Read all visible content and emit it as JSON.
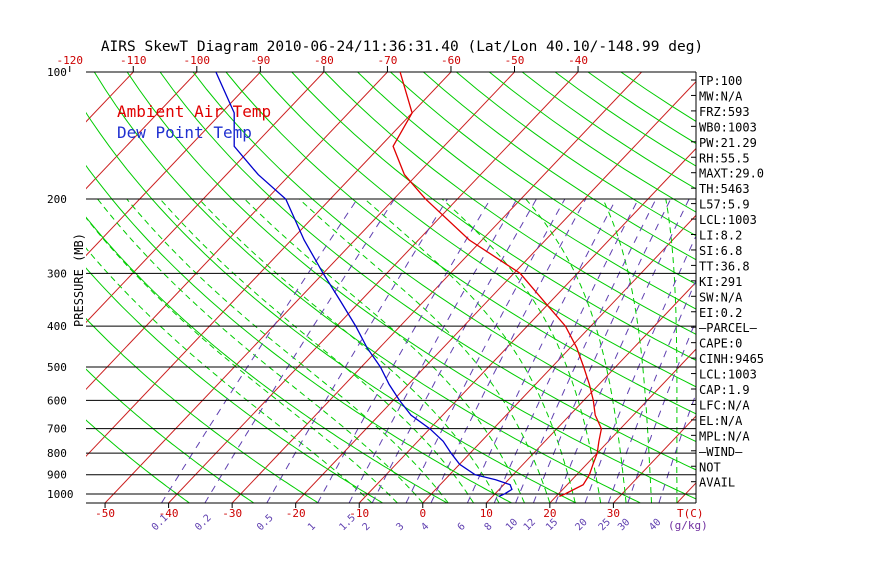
{
  "chart_data": {
    "type": "line",
    "title": "AIRS SkewT Diagram 2010-06-24/11:36:31.40 (Lat/Lon 40.10/-148.99 deg)",
    "ylabel": "PRESSURE (MB)",
    "xlabel": "T(C)",
    "mixing_label": "(g/kg)",
    "ylim": [
      100,
      1050
    ],
    "xlim_at_surface": [
      -53,
      43
    ],
    "y_scale": "log",
    "pressure_ticks": [
      100,
      200,
      300,
      400,
      500,
      600,
      700,
      800,
      900,
      1000
    ],
    "bottom_temp_ticks": [
      -50,
      -40,
      -30,
      -20,
      -10,
      0,
      10,
      20,
      30
    ],
    "top_temp_ticks": [
      -120,
      -110,
      -100,
      -90,
      -80,
      -70,
      -60,
      -50,
      -40
    ],
    "mixing_ratio_ticks": [
      "0.1",
      "0.2",
      "0.5",
      "1",
      "1.5",
      "2",
      "3",
      "4",
      "6",
      "8",
      "10",
      "12",
      "15",
      "20",
      "25",
      "30",
      "40"
    ],
    "legend": [
      "Ambient Air Temp",
      "Dew Point Temp"
    ],
    "colors": {
      "temp": "#e00000",
      "dew": "#0000cc",
      "dry_adiabat": "#00cc00",
      "moist_adiabat": "#00cc00",
      "isotherm": "#cc2020",
      "mixing_ratio": "#6040b0",
      "isobar": "#000000",
      "tick": "#cc0000",
      "legend_temp": "#e00000",
      "legend_dew": "#2030d0"
    },
    "series": [
      {
        "name": "Ambient Air Temp",
        "points": [
          [
            1013,
            20.5
          ],
          [
            1000,
            21
          ],
          [
            950,
            22.5
          ],
          [
            900,
            22
          ],
          [
            850,
            21
          ],
          [
            800,
            20
          ],
          [
            750,
            18.5
          ],
          [
            700,
            17
          ],
          [
            650,
            14
          ],
          [
            600,
            11.5
          ],
          [
            550,
            8.5
          ],
          [
            500,
            5
          ],
          [
            450,
            1
          ],
          [
            400,
            -4
          ],
          [
            350,
            -11
          ],
          [
            300,
            -19
          ],
          [
            250,
            -32
          ],
          [
            200,
            -45
          ],
          [
            175,
            -52
          ],
          [
            150,
            -58
          ],
          [
            125,
            -60
          ],
          [
            100,
            -68
          ]
        ]
      },
      {
        "name": "Dew Point Temp",
        "points": [
          [
            1013,
            11
          ],
          [
            1000,
            11.5
          ],
          [
            975,
            12
          ],
          [
            950,
            11
          ],
          [
            925,
            8
          ],
          [
            900,
            4
          ],
          [
            850,
            0
          ],
          [
            800,
            -3
          ],
          [
            750,
            -6
          ],
          [
            700,
            -10
          ],
          [
            650,
            -15
          ],
          [
            600,
            -19
          ],
          [
            550,
            -23
          ],
          [
            500,
            -27
          ],
          [
            450,
            -32
          ],
          [
            400,
            -37
          ],
          [
            350,
            -43
          ],
          [
            300,
            -50
          ],
          [
            250,
            -58
          ],
          [
            200,
            -67
          ],
          [
            175,
            -75
          ],
          [
            150,
            -83
          ],
          [
            125,
            -88
          ],
          [
            100,
            -97
          ]
        ]
      }
    ],
    "indices": [
      "TP:100",
      "MW:N/A",
      "FRZ:593",
      "WB0:1003",
      "PW:21.29",
      "RH:55.5",
      "MAXT:29.0",
      "TH:5463",
      "L57:5.9",
      "LCL:1003",
      "LI:8.2",
      "SI:6.8",
      "TT:36.8",
      "KI:291",
      "SW:N/A",
      "EI:0.2",
      "—PARCEL—",
      "CAPE:0",
      "CINH:9465",
      "LCL:1003",
      "CAP:1.9",
      "LFC:N/A",
      "EL:N/A",
      "MPL:N/A",
      "—WIND—",
      "NOT",
      "AVAIL"
    ]
  }
}
